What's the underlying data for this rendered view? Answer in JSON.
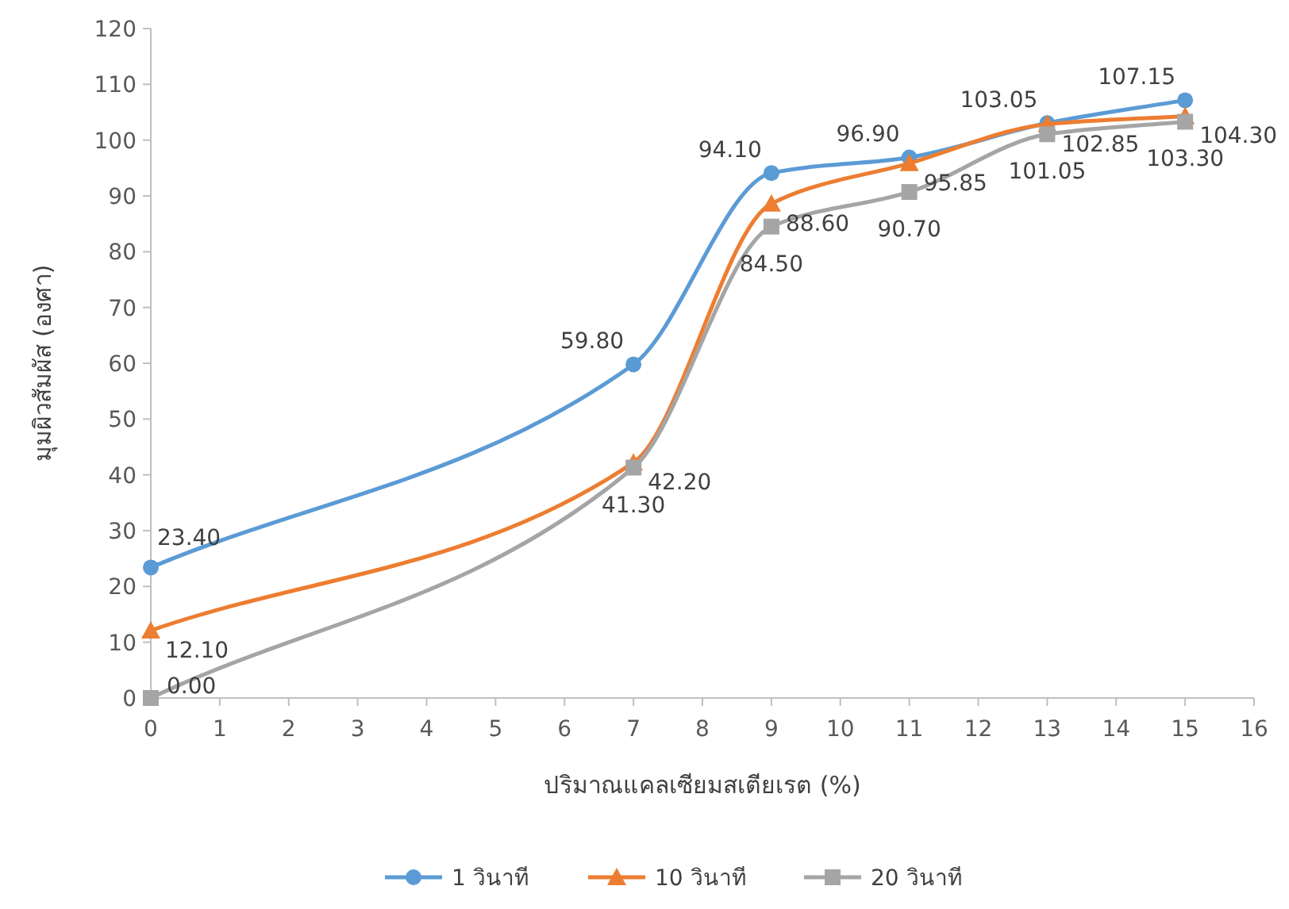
{
  "chart_data": {
    "type": "line",
    "xlabel": "ปริมาณแคลเซียมสเตียเรต (%)",
    "ylabel": "มุมผิวสัมผัส (องศา)",
    "x": [
      0,
      7,
      9,
      11,
      13,
      15
    ],
    "xlim": [
      0,
      16
    ],
    "xticks": [
      0,
      1,
      2,
      3,
      4,
      5,
      6,
      7,
      8,
      9,
      10,
      11,
      12,
      13,
      14,
      15,
      16
    ],
    "ylim": [
      0,
      120
    ],
    "yticks": [
      0,
      10,
      20,
      30,
      40,
      50,
      60,
      70,
      80,
      90,
      100,
      110,
      120
    ],
    "grid": false,
    "legend": "bottom",
    "series": [
      {
        "name": "1 วินาที",
        "color": "#5b9bd5",
        "marker": "circle",
        "values": [
          23.4,
          59.8,
          94.1,
          96.9,
          103.05,
          107.15
        ],
        "value_labels": [
          "23.40",
          "59.80",
          "94.10",
          "96.90",
          "103.05",
          "107.15"
        ]
      },
      {
        "name": "10 วินาที",
        "color": "#ed7d31",
        "marker": "triangle",
        "values": [
          12.1,
          42.2,
          88.6,
          95.85,
          102.85,
          104.3
        ],
        "value_labels": [
          "12.10",
          "42.20",
          "88.60",
          "95.85",
          "102.85",
          "104.30"
        ]
      },
      {
        "name": "20 วินาที",
        "color": "#a5a5a5",
        "marker": "square",
        "values": [
          0.0,
          41.3,
          84.5,
          90.7,
          101.05,
          103.3
        ],
        "value_labels": [
          "0.00",
          "41.30",
          "84.50",
          "90.70",
          "101.05",
          "103.30"
        ]
      }
    ]
  }
}
